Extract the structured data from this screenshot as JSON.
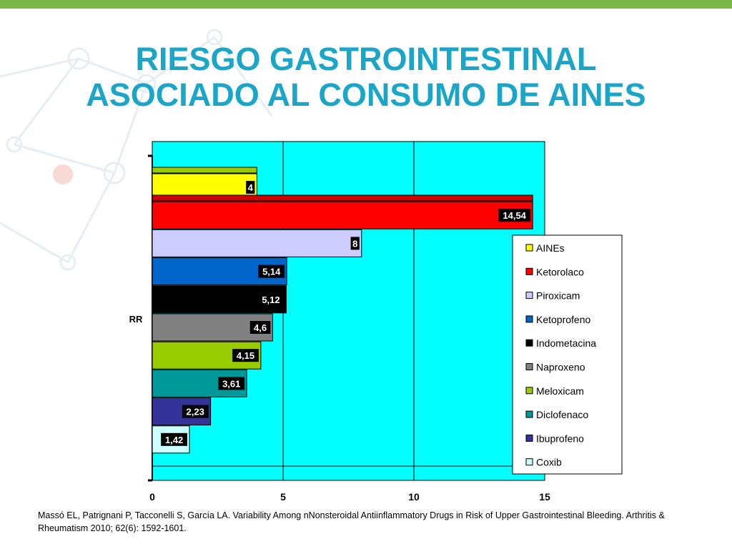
{
  "slide": {
    "title_line1": "RIESGO GASTROINTESTINAL",
    "title_line2": "ASOCIADO AL CONSUMO DE AINES",
    "citation": "Massó EL, Patrignani P, Tacconelli S, García LA. Variability Among nNonsteroidal Antiinflammatory Drugs in Risk of Upper Gastrointestinal Bleeding. Arthritis & Rheumatism 2010; 62(6): 1592-1601."
  },
  "colors": {
    "accent_bar": "#7ab648",
    "title": "#1aa6c8",
    "plot_background": "#00ffff"
  },
  "chart_data": {
    "type": "bar",
    "orientation": "horizontal",
    "category_label": "RR",
    "xlim": [
      0,
      15
    ],
    "xticks": [
      0,
      5,
      10,
      15
    ],
    "grid": "vertical",
    "legend_position": "right",
    "series": [
      {
        "name": "AINEs",
        "value": 4,
        "label": "4",
        "color": "#ffff00",
        "label_bg": "#000000",
        "label_fg": "#ffffff"
      },
      {
        "name": "Ketorolaco",
        "value": 14.54,
        "label": "14,54",
        "color": "#ff0000",
        "label_bg": "#000000",
        "label_fg": "#ffffff"
      },
      {
        "name": "Piroxicam",
        "value": 8,
        "label": "8",
        "color": "#ccccff",
        "label_bg": "#000000",
        "label_fg": "#ffffff"
      },
      {
        "name": "Ketoprofeno",
        "value": 5.14,
        "label": "5,14",
        "color": "#0066cc",
        "label_bg": "#000000",
        "label_fg": "#ffffff"
      },
      {
        "name": "Indometacina",
        "value": 5.12,
        "label": "5,12",
        "color": "#000000",
        "label_bg": "#000000",
        "label_fg": "#ffffff"
      },
      {
        "name": "Naproxeno",
        "value": 4.6,
        "label": "4,6",
        "color": "#808080",
        "label_bg": "#000000",
        "label_fg": "#ffffff"
      },
      {
        "name": "Meloxicam",
        "value": 4.15,
        "label": "4,15",
        "color": "#99cc00",
        "label_bg": "#000000",
        "label_fg": "#ffffff"
      },
      {
        "name": "Diclofenaco",
        "value": 3.61,
        "label": "3,61",
        "color": "#009999",
        "label_bg": "#000000",
        "label_fg": "#ffffff"
      },
      {
        "name": "Ibuprofeno",
        "value": 2.23,
        "label": "2,23",
        "color": "#333399",
        "label_bg": "#000000",
        "label_fg": "#ffffff"
      },
      {
        "name": "Coxib",
        "value": 1.42,
        "label": "1,42",
        "color": "#ccffff",
        "label_bg": "#000000",
        "label_fg": "#ffffff"
      }
    ]
  }
}
